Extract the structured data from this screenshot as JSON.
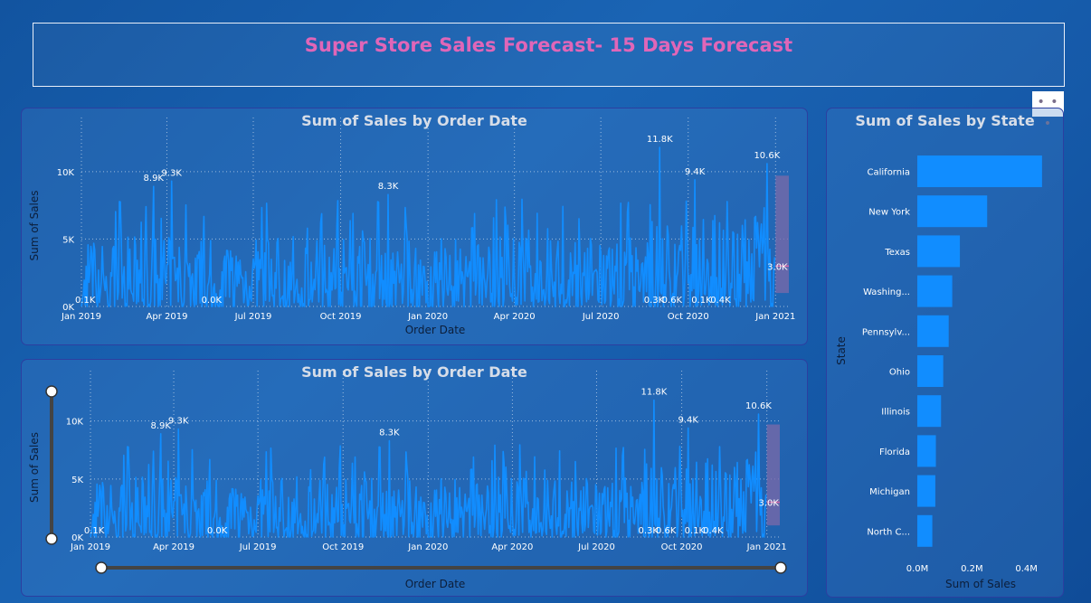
{
  "header": {
    "title": "Super Store Sales Forecast- 15 Days Forecast",
    "more_label": "• • •"
  },
  "colors": {
    "accent": "#118dff",
    "forecast": "#7c6aa8",
    "title": "#e066b8"
  },
  "charts": {
    "top": {
      "title": "Sum of Sales by Order Date",
      "xlabel": "Order Date",
      "ylabel": "Sum of Sales"
    },
    "bottom": {
      "title": "Sum of Sales by Order Date",
      "xlabel": "Order Date",
      "ylabel": "Sum of Sales"
    },
    "state": {
      "title": "Sum of Sales by State",
      "xlabel": "Sum of Sales",
      "ylabel": "State"
    }
  },
  "chart_data": [
    {
      "type": "line",
      "title": "Sum of Sales by Order Date",
      "xlabel": "Order Date",
      "ylabel": "Sum of Sales",
      "x_ticks": [
        "Jan 2019",
        "Apr 2019",
        "Jul 2019",
        "Oct 2019",
        "Jan 2020",
        "Apr 2020",
        "Jul 2020",
        "Oct 2020",
        "Jan 2021"
      ],
      "y_ticks": [
        "0K",
        "5K",
        "10K"
      ],
      "ylim": [
        0,
        12000
      ],
      "x_range": [
        "2019-01-01",
        "2021-01-15"
      ],
      "annotations": [
        {
          "date": "2019-01-05",
          "value": 100,
          "label": "0.1K"
        },
        {
          "date": "2019-03-18",
          "value": 8900,
          "label": "8.9K"
        },
        {
          "date": "2019-04-06",
          "value": 9300,
          "label": "9.3K"
        },
        {
          "date": "2019-05-18",
          "value": 0,
          "label": "0.0K"
        },
        {
          "date": "2019-11-20",
          "value": 8300,
          "label": "8.3K"
        },
        {
          "date": "2020-08-26",
          "value": 300,
          "label": "0.3K"
        },
        {
          "date": "2020-09-01",
          "value": 11800,
          "label": "11.8K"
        },
        {
          "date": "2020-09-14",
          "value": 600,
          "label": "0.6K"
        },
        {
          "date": "2020-10-08",
          "value": 9400,
          "label": "9.4K"
        },
        {
          "date": "2020-10-15",
          "value": 100,
          "label": "0.1K"
        },
        {
          "date": "2020-11-04",
          "value": 400,
          "label": "0.4K"
        },
        {
          "date": "2020-12-23",
          "value": 10600,
          "label": "10.6K"
        },
        {
          "date": "2021-01-03",
          "value": 3000,
          "label": "3.0K"
        }
      ],
      "forecast": {
        "start": "2021-01-01",
        "end": "2021-01-15",
        "value": 3000,
        "lower": 1000,
        "upper": 9700
      },
      "grid": true
    },
    {
      "type": "bar",
      "orientation": "horizontal",
      "title": "Sum of Sales by State",
      "xlabel": "Sum of Sales",
      "ylabel": "State",
      "categories": [
        "California",
        "New York",
        "Texas",
        "Washing...",
        "Pennsylv...",
        "Ohio",
        "Illinois",
        "Florida",
        "Michigan",
        "North C..."
      ],
      "values": [
        0.457,
        0.256,
        0.156,
        0.128,
        0.115,
        0.095,
        0.087,
        0.068,
        0.066,
        0.055
      ],
      "x_ticks": [
        "0.0M",
        "0.2M",
        "0.4M"
      ],
      "xlim": [
        0,
        0.6
      ],
      "grid": false
    }
  ]
}
